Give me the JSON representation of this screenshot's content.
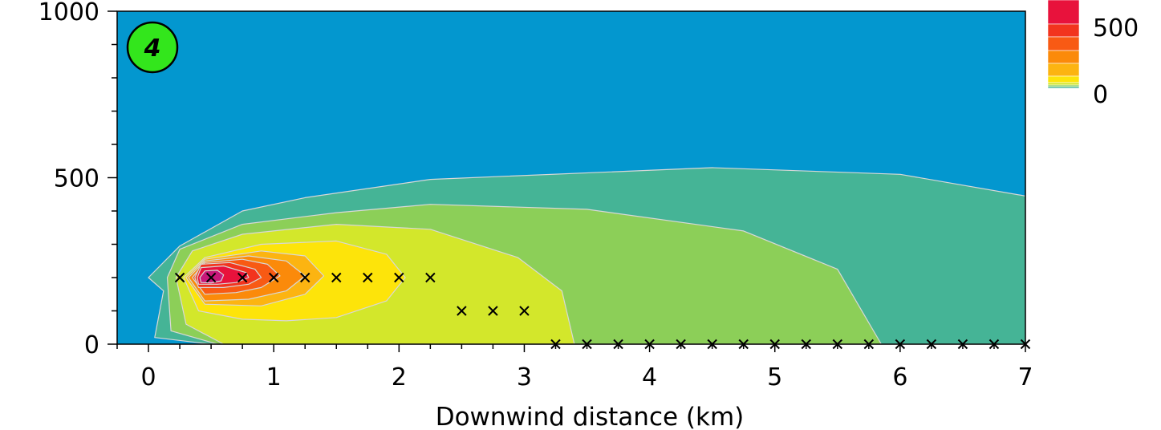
{
  "chart_data": {
    "type": "heatmap",
    "title": "",
    "xlabel": "Downwind distance (km)",
    "ylabel": "",
    "xlim": [
      -0.25,
      7.0
    ],
    "ylim": [
      0,
      1000
    ],
    "x_ticks": [
      "0",
      "1",
      "2",
      "3",
      "4",
      "5",
      "6",
      "7"
    ],
    "y_ticks": [
      "0",
      "500",
      "1000"
    ],
    "panel_label": "4",
    "grid": false,
    "legend": {
      "placement": "top-right",
      "labels": [
        "500",
        "0"
      ],
      "levels": [
        {
          "level": 700,
          "color": "#e8123c"
        },
        {
          "level": 600,
          "color": "#f2341e"
        },
        {
          "level": 500,
          "color": "#f85a14"
        },
        {
          "level": 400,
          "color": "#fb8a0a"
        },
        {
          "level": 300,
          "color": "#fcb411"
        },
        {
          "level": 200,
          "color": "#fde40a"
        },
        {
          "level": 100,
          "color": "#d3e72b"
        },
        {
          "level": 50,
          "color": "#8ccf58"
        },
        {
          "level": 20,
          "color": "#45b496"
        },
        {
          "level": 0,
          "color": "#0397cf"
        }
      ]
    },
    "contours": [
      {
        "color": "#45b496",
        "points": [
          [
            0.05,
            20
          ],
          [
            0.12,
            160
          ],
          [
            0.0,
            200
          ],
          [
            0.25,
            295
          ],
          [
            0.75,
            400
          ],
          [
            1.25,
            440
          ],
          [
            2.25,
            495
          ],
          [
            4.5,
            530
          ],
          [
            6.0,
            510
          ],
          [
            7.0,
            445
          ],
          [
            7.0,
            0
          ],
          [
            0.5,
            0
          ]
        ]
      },
      {
        "color": "#8ccf58",
        "points": [
          [
            0.18,
            40
          ],
          [
            0.15,
            200
          ],
          [
            0.25,
            285
          ],
          [
            0.75,
            360
          ],
          [
            1.5,
            395
          ],
          [
            2.25,
            420
          ],
          [
            3.5,
            405
          ],
          [
            4.75,
            340
          ],
          [
            5.5,
            225
          ],
          [
            5.85,
            0
          ],
          [
            0.55,
            0
          ]
        ]
      },
      {
        "color": "#d3e72b",
        "points": [
          [
            0.3,
            60
          ],
          [
            0.22,
            200
          ],
          [
            0.35,
            280
          ],
          [
            0.75,
            330
          ],
          [
            1.5,
            360
          ],
          [
            2.25,
            345
          ],
          [
            2.95,
            260
          ],
          [
            3.3,
            160
          ],
          [
            3.4,
            0
          ],
          [
            0.6,
            0
          ]
        ]
      },
      {
        "color": "#fde40a",
        "points": [
          [
            0.4,
            100
          ],
          [
            0.28,
            200
          ],
          [
            0.45,
            260
          ],
          [
            0.9,
            300
          ],
          [
            1.5,
            310
          ],
          [
            1.9,
            270
          ],
          [
            2.05,
            200
          ],
          [
            1.9,
            130
          ],
          [
            1.5,
            80
          ],
          [
            1.1,
            70
          ],
          [
            0.75,
            75
          ]
        ]
      },
      {
        "color": "#fcb411",
        "points": [
          [
            0.45,
            120
          ],
          [
            0.3,
            200
          ],
          [
            0.45,
            255
          ],
          [
            0.9,
            280
          ],
          [
            1.25,
            265
          ],
          [
            1.4,
            205
          ],
          [
            1.25,
            150
          ],
          [
            0.9,
            115
          ]
        ]
      },
      {
        "color": "#fb8a0a",
        "points": [
          [
            0.45,
            130
          ],
          [
            0.32,
            200
          ],
          [
            0.45,
            250
          ],
          [
            0.8,
            265
          ],
          [
            1.1,
            250
          ],
          [
            1.25,
            205
          ],
          [
            1.1,
            160
          ],
          [
            0.8,
            135
          ]
        ]
      },
      {
        "color": "#f85a14",
        "points": [
          [
            0.45,
            150
          ],
          [
            0.35,
            200
          ],
          [
            0.45,
            245
          ],
          [
            0.75,
            255
          ],
          [
            0.95,
            240
          ],
          [
            1.05,
            205
          ],
          [
            0.9,
            170
          ],
          [
            0.7,
            155
          ]
        ]
      },
      {
        "color": "#f2341e",
        "points": [
          [
            0.4,
            170
          ],
          [
            0.37,
            200
          ],
          [
            0.42,
            240
          ],
          [
            0.65,
            245
          ],
          [
            0.85,
            225
          ],
          [
            0.9,
            200
          ],
          [
            0.8,
            180
          ],
          [
            0.6,
            170
          ]
        ]
      },
      {
        "color": "#e8123c",
        "points": [
          [
            0.4,
            180
          ],
          [
            0.39,
            200
          ],
          [
            0.42,
            230
          ],
          [
            0.6,
            235
          ],
          [
            0.78,
            215
          ],
          [
            0.8,
            200
          ],
          [
            0.7,
            185
          ],
          [
            0.55,
            180
          ]
        ]
      },
      {
        "color": "#c8187a",
        "points": [
          [
            0.42,
            185
          ],
          [
            0.41,
            200
          ],
          [
            0.45,
            220
          ],
          [
            0.55,
            222
          ],
          [
            0.6,
            208
          ],
          [
            0.58,
            190
          ],
          [
            0.5,
            184
          ]
        ]
      }
    ],
    "markers": [
      {
        "x": 0.25,
        "y": 200
      },
      {
        "x": 0.5,
        "y": 200
      },
      {
        "x": 0.75,
        "y": 200
      },
      {
        "x": 1.0,
        "y": 200
      },
      {
        "x": 1.25,
        "y": 200
      },
      {
        "x": 1.5,
        "y": 200
      },
      {
        "x": 1.75,
        "y": 200
      },
      {
        "x": 2.0,
        "y": 200
      },
      {
        "x": 2.25,
        "y": 200
      },
      {
        "x": 2.5,
        "y": 100
      },
      {
        "x": 2.75,
        "y": 100
      },
      {
        "x": 3.0,
        "y": 100
      },
      {
        "x": 3.25,
        "y": 0
      },
      {
        "x": 3.5,
        "y": 0
      },
      {
        "x": 3.75,
        "y": 0
      },
      {
        "x": 4.0,
        "y": 0
      },
      {
        "x": 4.25,
        "y": 0
      },
      {
        "x": 4.5,
        "y": 0
      },
      {
        "x": 4.75,
        "y": 0
      },
      {
        "x": 5.0,
        "y": 0
      },
      {
        "x": 5.25,
        "y": 0
      },
      {
        "x": 5.5,
        "y": 0
      },
      {
        "x": 5.75,
        "y": 0
      },
      {
        "x": 6.0,
        "y": 0
      },
      {
        "x": 6.25,
        "y": 0
      },
      {
        "x": 6.5,
        "y": 0
      },
      {
        "x": 6.75,
        "y": 0
      },
      {
        "x": 7.0,
        "y": 0
      }
    ]
  }
}
